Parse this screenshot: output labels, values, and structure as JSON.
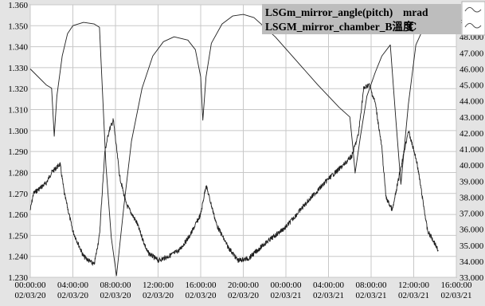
{
  "chart_data": {
    "type": "line",
    "title": "",
    "legend": {
      "placement": "top-right",
      "entries": [
        {
          "name": "LSGm_mirror_angle(pitch)",
          "unit": "mrad",
          "icon": "wave-icon"
        },
        {
          "name": "LSGM_mirror_chamber_B溫度",
          "unit": "℃",
          "icon": "wave-icon"
        }
      ]
    },
    "grid": true,
    "x_axis": {
      "ticks": [
        {
          "time": "00:00:00",
          "date": "02/03/20"
        },
        {
          "time": "04:00:00",
          "date": "02/03/20"
        },
        {
          "time": "08:00:00",
          "date": "02/03/20"
        },
        {
          "time": "12:00:00",
          "date": "02/03/20"
        },
        {
          "time": "16:00:00",
          "date": "02/03/20"
        },
        {
          "time": "20:00:00",
          "date": "02/03/20"
        },
        {
          "time": "00:00:00",
          "date": "02/03/21"
        },
        {
          "time": "04:00:00",
          "date": "02/03/21"
        },
        {
          "time": "08:00:00",
          "date": "02/03/21"
        },
        {
          "time": "12:00:00",
          "date": "02/03/21"
        },
        {
          "time": "16:00:00",
          "date": "02/03/21"
        }
      ],
      "range_hours": [
        0,
        40
      ]
    },
    "y_left": {
      "ylim": [
        1.23,
        1.36
      ],
      "ticks": [
        "1.360",
        "1.350",
        "1.340",
        "1.330",
        "1.320",
        "1.310",
        "1.300",
        "1.290",
        "1.280",
        "1.270",
        "1.260",
        "1.250",
        "1.240",
        "1.230"
      ]
    },
    "y_right": {
      "ylim": [
        33.0,
        50.0
      ],
      "ticks": [
        "49.000",
        "48.000",
        "47.000",
        "46.000",
        "45.000",
        "44.000",
        "43.000",
        "42.000",
        "41.000",
        "40.000",
        "39.000",
        "38.000",
        "37.000",
        "36.000",
        "35.000",
        "34.000",
        "33.000"
      ]
    },
    "series": [
      {
        "name": "LSGm_mirror_angle(pitch)",
        "axis": "left",
        "noisy": true,
        "x": [
          0,
          0.3,
          1.5,
          2.0,
          2.8,
          3.2,
          4.0,
          5.0,
          5.5,
          6.0,
          6.5,
          7.0,
          7.4,
          7.8,
          8.4,
          9.0,
          10.0,
          11.0,
          12.0,
          13.0,
          14.0,
          15.0,
          16.0,
          16.5,
          17.5,
          18.5,
          19.5,
          20.5,
          22.0,
          24.0,
          26.0,
          28.0,
          29.5,
          30.2,
          30.8,
          31.3,
          31.8,
          32.4,
          33.0,
          33.4,
          34.0,
          34.7,
          35.5,
          36.3,
          37.3,
          37.8,
          38.3
        ],
        "y": [
          1.262,
          1.27,
          1.275,
          1.28,
          1.284,
          1.27,
          1.252,
          1.24,
          1.238,
          1.236,
          1.25,
          1.29,
          1.3,
          1.305,
          1.278,
          1.265,
          1.256,
          1.242,
          1.238,
          1.24,
          1.243,
          1.25,
          1.26,
          1.274,
          1.255,
          1.245,
          1.238,
          1.239,
          1.246,
          1.254,
          1.266,
          1.277,
          1.284,
          1.288,
          1.298,
          1.32,
          1.322,
          1.313,
          1.292,
          1.268,
          1.262,
          1.28,
          1.3,
          1.285,
          1.252,
          1.248,
          1.243
        ]
      },
      {
        "name": "LSGM_mirror_chamber_B溫度",
        "axis": "right",
        "noisy": false,
        "x": [
          0,
          1.5,
          2.0,
          2.25,
          2.5,
          3.0,
          3.5,
          4.0,
          5.0,
          6.0,
          6.5,
          7.1,
          7.6,
          8.1,
          8.8,
          9.5,
          10.5,
          11.5,
          12.5,
          13.5,
          14.8,
          15.5,
          16.0,
          16.2,
          16.5,
          17.0,
          18.0,
          19.0,
          20.0,
          21.0,
          23.0,
          25.0,
          27.0,
          29.0,
          30.0,
          30.3,
          30.5,
          31.0,
          31.6,
          32.4,
          33.0,
          33.8,
          34.3,
          34.8,
          35.5,
          36.2,
          37.3,
          38.3
        ],
        "y": [
          46.0,
          45.0,
          44.8,
          41.8,
          44.3,
          46.8,
          48.2,
          48.7,
          48.9,
          48.8,
          48.6,
          40.0,
          35.5,
          33.1,
          37.5,
          41.5,
          44.8,
          46.8,
          47.7,
          48.0,
          47.8,
          47.2,
          45.5,
          42.8,
          45.5,
          47.6,
          48.8,
          49.3,
          49.4,
          49.2,
          48.0,
          46.5,
          45.0,
          43.6,
          43.0,
          41.0,
          39.5,
          41.8,
          44.3,
          45.8,
          46.8,
          47.5,
          43.0,
          38.8,
          43.8,
          47.5,
          49.1,
          49.4
        ]
      }
    ]
  }
}
